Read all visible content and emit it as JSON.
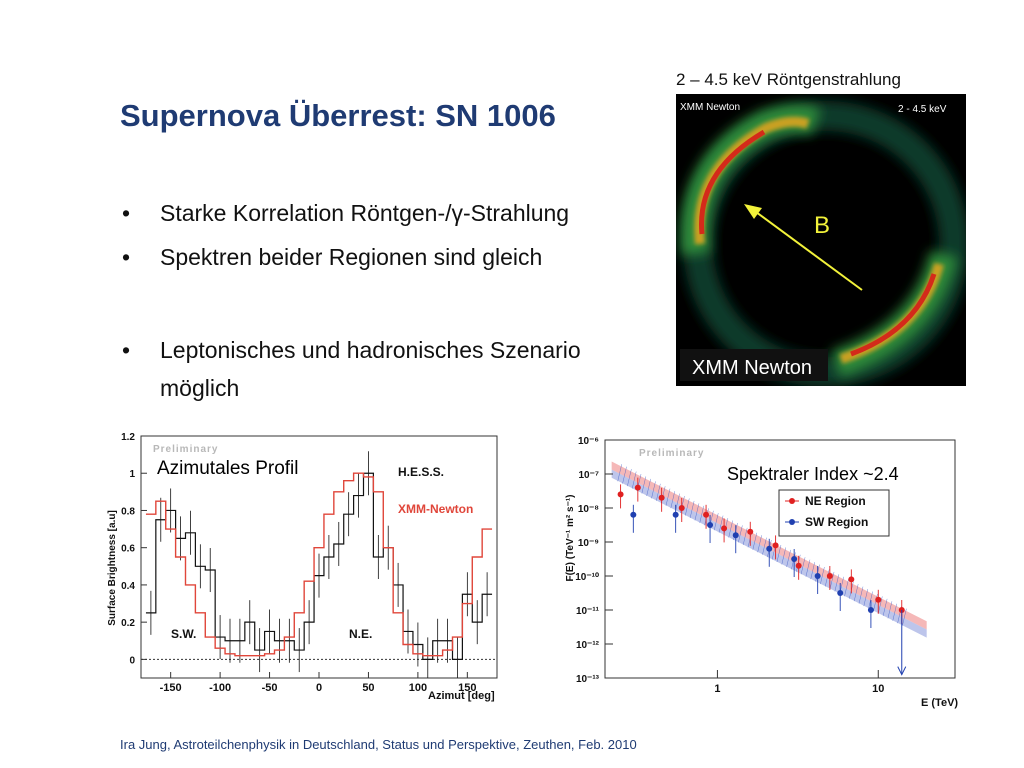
{
  "slide": {
    "title": "Supernova Überrest: SN 1006",
    "bullets": [
      {
        "bullet": "•",
        "lines": [
          "Starke Korrelation Röntgen-/γ-Strahlung"
        ]
      },
      {
        "bullet": "•",
        "lines": [
          "Spektren beider Regionen sind gleich"
        ]
      },
      {
        "bullet": "•",
        "lines": [
          "Leptonisches und hadronisches Szenario",
          "möglich"
        ]
      }
    ],
    "footer": "Ira Jung, Astroteilchenphysik in Deutschland, Status und Perspektive, Zeuthen, Feb. 2010"
  },
  "xray_image": {
    "caption": "2 – 4.5 keV Röntgenstrahlung",
    "inner_label_left": "XMM Newton",
    "inner_label_right": "2 - 4.5 keV",
    "marker": "B",
    "bottom_label": "XMM Newton",
    "colors": {
      "background": "#000000",
      "glow": "#2e8b3a",
      "hot": "#d42a1a",
      "arrow": "#f2f23a"
    }
  },
  "chart_data": [
    {
      "type": "line",
      "title": "",
      "overlay_label": "Azimutales Profil",
      "watermark": "Preliminary",
      "xlabel": "Azimut [deg]",
      "ylabel": "Surface Brightness [a.u]",
      "xlim": [
        -180,
        180
      ],
      "ylim": [
        -0.1,
        1.2
      ],
      "x_ticks": [
        -150,
        -100,
        -50,
        0,
        50,
        100,
        150
      ],
      "y_ticks": [
        0,
        0.2,
        0.4,
        0.6,
        0.8,
        1,
        1.2
      ],
      "region_labels": [
        {
          "text": "S.W.",
          "x": -150,
          "y": 0.12
        },
        {
          "text": "N.E.",
          "x": 40,
          "y": 0.12
        }
      ],
      "legend_position": "top-right",
      "series": [
        {
          "name": "H.E.S.S.",
          "color": "#111111",
          "x": [
            -170,
            -160,
            -150,
            -140,
            -130,
            -120,
            -110,
            -100,
            -90,
            -80,
            -70,
            -60,
            -50,
            -40,
            -30,
            -20,
            -10,
            0,
            10,
            20,
            30,
            40,
            50,
            60,
            70,
            80,
            90,
            100,
            110,
            120,
            130,
            140,
            150,
            160,
            170
          ],
          "y": [
            0.25,
            0.75,
            0.8,
            0.65,
            0.68,
            0.5,
            0.48,
            0.12,
            0.1,
            0.1,
            0.2,
            0.05,
            0.15,
            0.1,
            0.1,
            0.05,
            0.2,
            0.45,
            0.55,
            0.62,
            0.78,
            0.88,
            1.0,
            0.55,
            0.6,
            0.4,
            0.15,
            0.08,
            0.0,
            0.1,
            0.1,
            0.0,
            0.35,
            0.2,
            0.35
          ]
        },
        {
          "name": "XMM-Newton",
          "color": "#e0463a",
          "x": [
            -170,
            -160,
            -150,
            -140,
            -130,
            -120,
            -110,
            -100,
            -90,
            -80,
            -70,
            -60,
            -50,
            -40,
            -30,
            -20,
            -10,
            0,
            10,
            20,
            30,
            40,
            50,
            60,
            70,
            80,
            90,
            100,
            110,
            120,
            130,
            140,
            150,
            160,
            170
          ],
          "y": [
            0.78,
            0.85,
            0.7,
            0.55,
            0.4,
            0.25,
            0.12,
            0.06,
            0.03,
            0.02,
            0.02,
            0.02,
            0.03,
            0.05,
            0.12,
            0.25,
            0.42,
            0.6,
            0.78,
            0.9,
            0.96,
            1.0,
            0.98,
            0.9,
            0.6,
            0.25,
            0.08,
            0.03,
            0.02,
            0.02,
            0.05,
            0.12,
            0.3,
            0.55,
            0.7
          ]
        }
      ]
    },
    {
      "type": "scatter",
      "title": "",
      "overlay_label": "Spektraler Index ~2.4",
      "watermark": "Preliminary",
      "xlabel": "E (TeV)",
      "ylabel": "F(E) (TeV⁻¹ m² s⁻¹)",
      "x_scale": "log",
      "y_scale": "log",
      "xlim": [
        0.2,
        30
      ],
      "ylim_exp": [
        -13,
        -6
      ],
      "x_tick_labels": [
        "1",
        "10"
      ],
      "y_tick_labels": [
        "10⁻⁶",
        "10⁻⁷",
        "10⁻⁸",
        "10⁻⁹",
        "10⁻¹⁰",
        "10⁻¹¹",
        "10⁻¹²",
        "10⁻¹³"
      ],
      "legend_position": "top-right",
      "fit_index": 2.4,
      "series": [
        {
          "name": "NE Region",
          "color": "#e02020",
          "x": [
            0.25,
            0.32,
            0.45,
            0.6,
            0.85,
            1.1,
            1.6,
            2.3,
            3.2,
            5.0,
            6.8,
            10,
            14
          ],
          "logy": [
            -7.6,
            -7.4,
            -7.7,
            -8.0,
            -8.2,
            -8.6,
            -8.7,
            -9.1,
            -9.7,
            -10.0,
            -10.1,
            -10.7,
            -11.0
          ]
        },
        {
          "name": "SW Region",
          "color": "#2040b0",
          "x": [
            0.3,
            0.55,
            0.9,
            1.3,
            2.1,
            3.0,
            4.2,
            5.8,
            9.0
          ],
          "logy": [
            -8.2,
            -8.2,
            -8.5,
            -8.8,
            -9.2,
            -9.5,
            -10.0,
            -10.5,
            -11.0
          ]
        }
      ]
    }
  ]
}
